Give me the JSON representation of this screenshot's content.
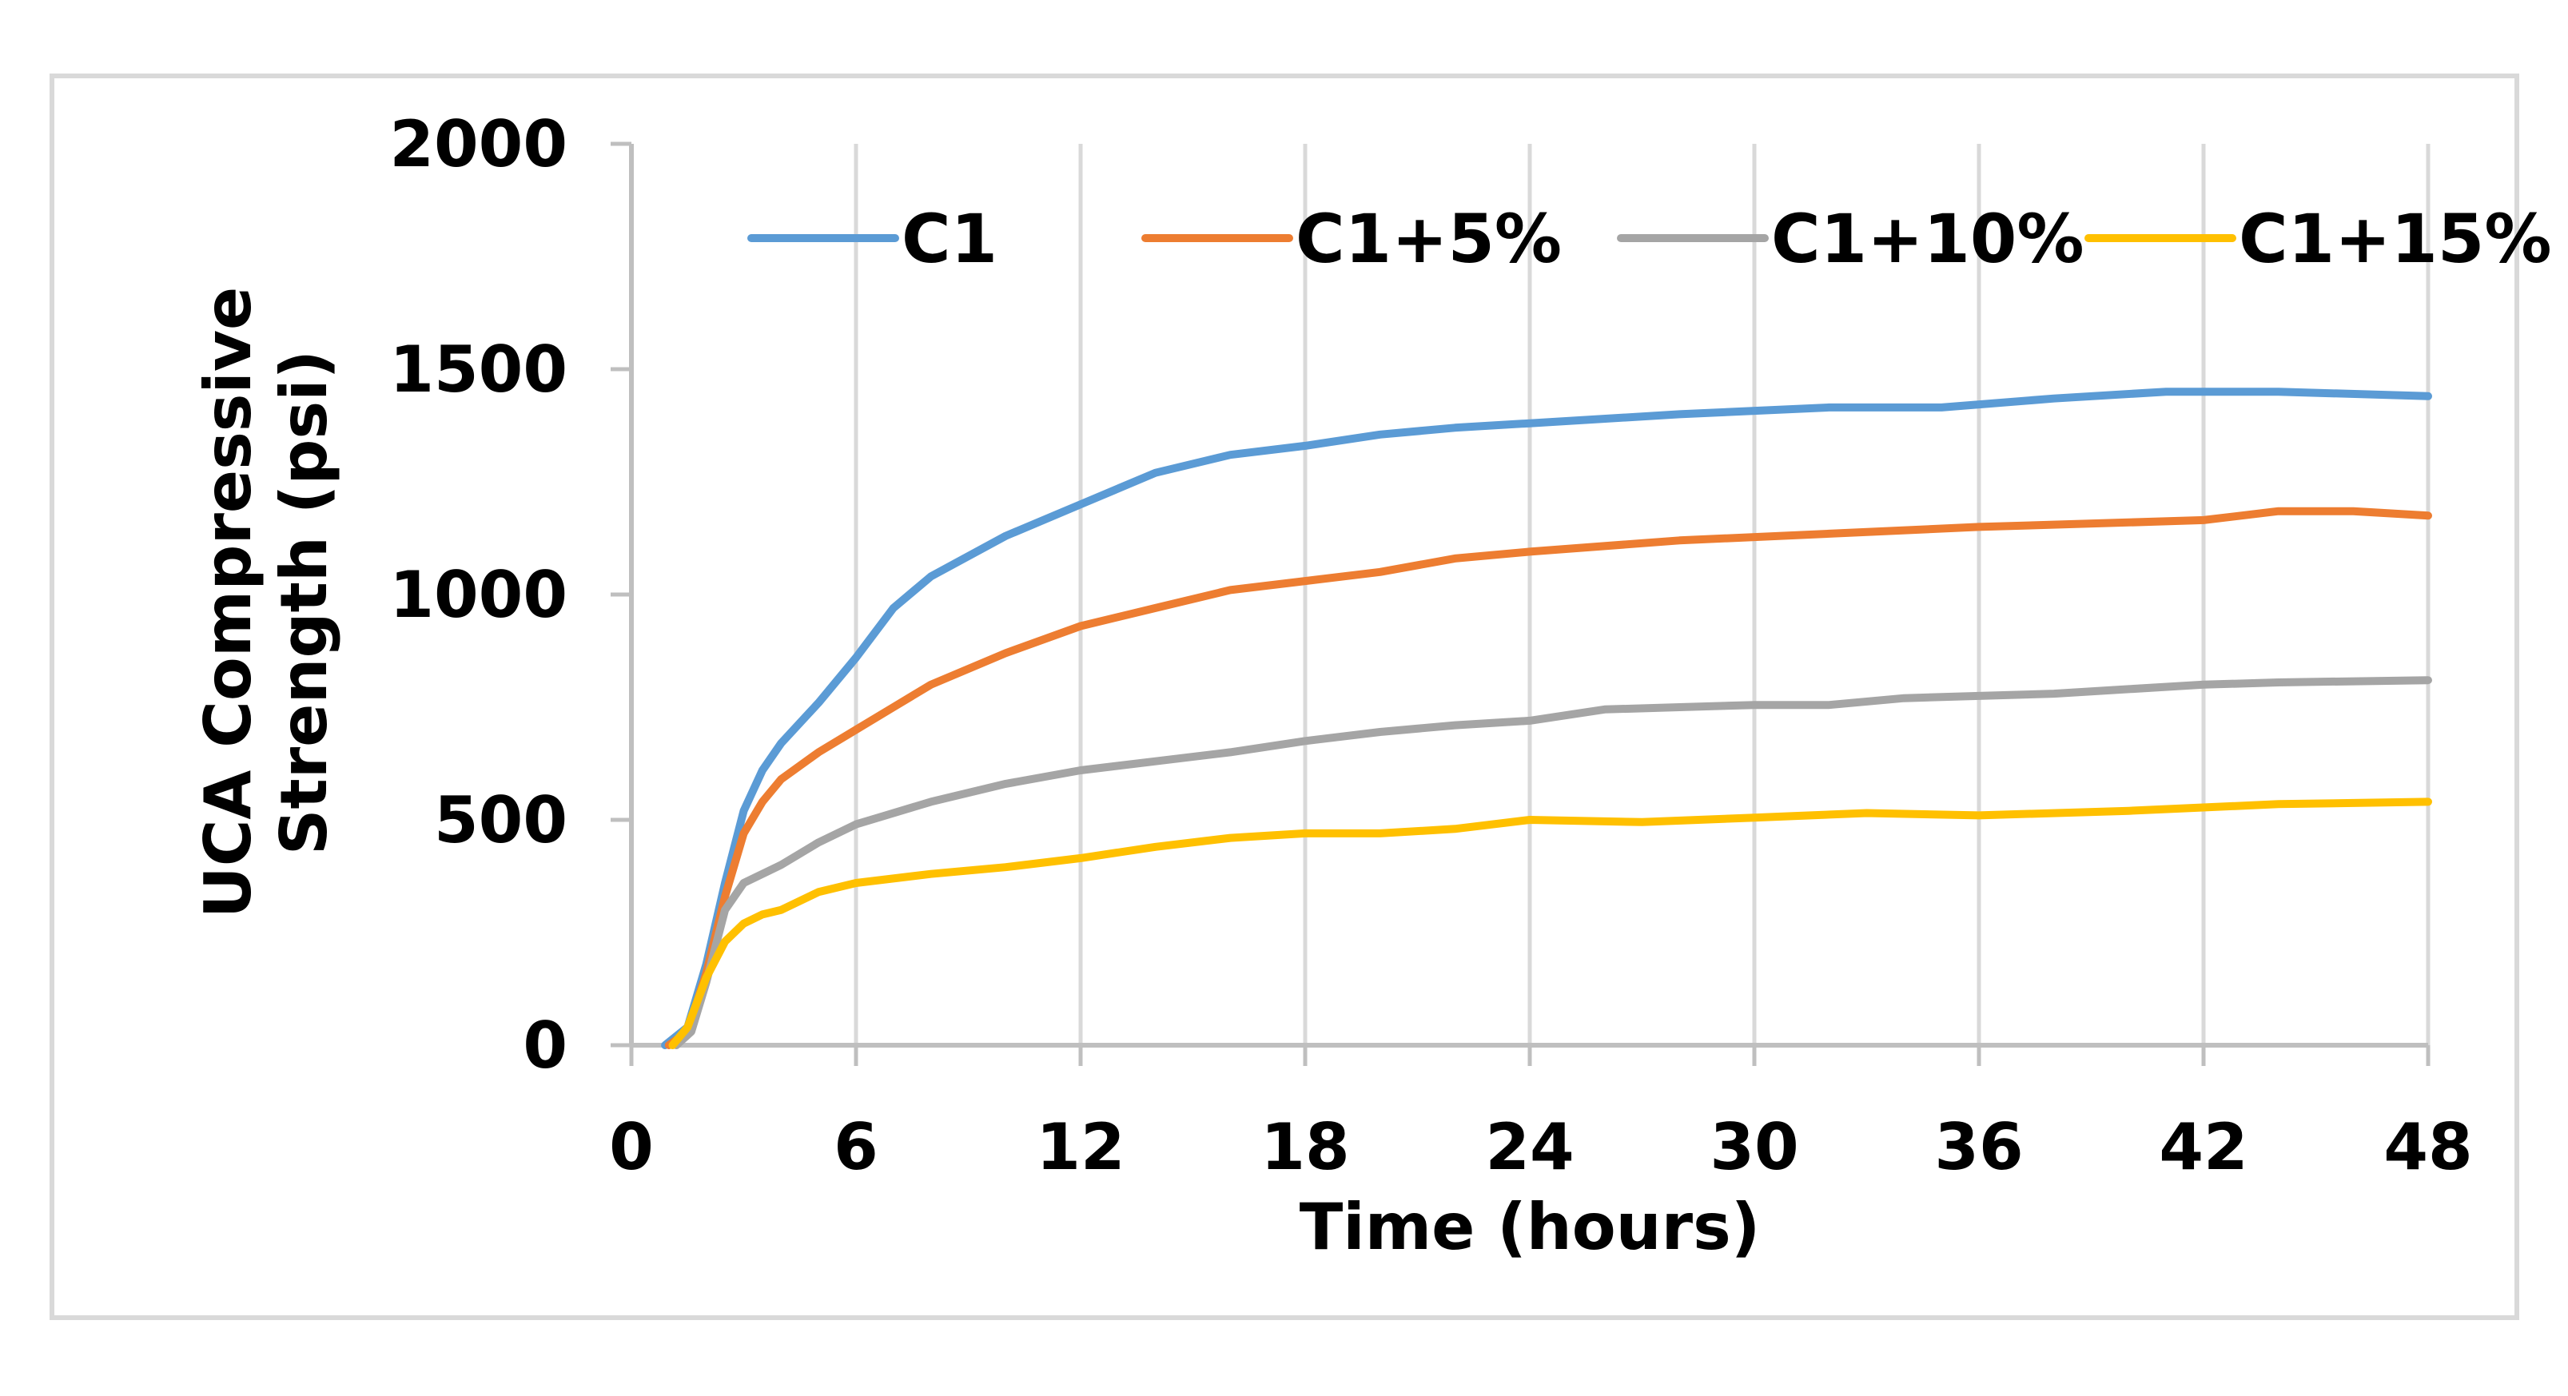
{
  "chart_data": {
    "type": "line",
    "title": "",
    "xlabel": "Time (hours)",
    "ylabel_line1": "UCA Compressive",
    "ylabel_line2": "Strength (psi)",
    "xlim": [
      0,
      48
    ],
    "ylim": [
      0,
      2000
    ],
    "xticks": [
      0,
      6,
      12,
      18,
      24,
      30,
      36,
      42,
      48
    ],
    "yticks": [
      0,
      500,
      1000,
      1500,
      2000
    ],
    "grid": "vertical",
    "legend_position": "top",
    "series": [
      {
        "name": "C1",
        "color": "#5b9bd5",
        "points": [
          [
            0.9,
            0
          ],
          [
            1.5,
            40
          ],
          [
            2,
            180
          ],
          [
            2.5,
            360
          ],
          [
            3,
            520
          ],
          [
            3.5,
            610
          ],
          [
            4,
            670
          ],
          [
            5,
            760
          ],
          [
            6,
            860
          ],
          [
            7,
            970
          ],
          [
            8,
            1040
          ],
          [
            10,
            1130
          ],
          [
            12,
            1200
          ],
          [
            14,
            1270
          ],
          [
            16,
            1310
          ],
          [
            18,
            1330
          ],
          [
            20,
            1355
          ],
          [
            22,
            1370
          ],
          [
            24,
            1380
          ],
          [
            28,
            1400
          ],
          [
            32,
            1415
          ],
          [
            35,
            1415
          ],
          [
            38,
            1435
          ],
          [
            41,
            1450
          ],
          [
            44,
            1450
          ],
          [
            48,
            1440
          ]
        ]
      },
      {
        "name": "C1+5%",
        "color": "#ed7d31",
        "points": [
          [
            1.0,
            0
          ],
          [
            1.5,
            30
          ],
          [
            2,
            160
          ],
          [
            2.5,
            330
          ],
          [
            3,
            470
          ],
          [
            3.5,
            540
          ],
          [
            4,
            590
          ],
          [
            5,
            650
          ],
          [
            6,
            700
          ],
          [
            7,
            750
          ],
          [
            8,
            800
          ],
          [
            10,
            870
          ],
          [
            12,
            930
          ],
          [
            14,
            970
          ],
          [
            16,
            1010
          ],
          [
            18,
            1030
          ],
          [
            20,
            1050
          ],
          [
            22,
            1080
          ],
          [
            24,
            1095
          ],
          [
            28,
            1120
          ],
          [
            32,
            1135
          ],
          [
            36,
            1150
          ],
          [
            40,
            1160
          ],
          [
            42,
            1165
          ],
          [
            44,
            1185
          ],
          [
            46,
            1185
          ],
          [
            48,
            1175
          ]
        ]
      },
      {
        "name": "C1+10%",
        "color": "#a5a5a5",
        "points": [
          [
            1.2,
            0
          ],
          [
            1.6,
            30
          ],
          [
            2,
            140
          ],
          [
            2.5,
            300
          ],
          [
            3,
            360
          ],
          [
            4,
            400
          ],
          [
            5,
            450
          ],
          [
            6,
            490
          ],
          [
            8,
            540
          ],
          [
            10,
            580
          ],
          [
            12,
            610
          ],
          [
            14,
            630
          ],
          [
            16,
            650
          ],
          [
            18,
            675
          ],
          [
            20,
            695
          ],
          [
            22,
            710
          ],
          [
            24,
            720
          ],
          [
            26,
            745
          ],
          [
            28,
            750
          ],
          [
            30,
            755
          ],
          [
            32,
            755
          ],
          [
            34,
            770
          ],
          [
            36,
            775
          ],
          [
            38,
            780
          ],
          [
            40,
            790
          ],
          [
            42,
            800
          ],
          [
            44,
            805
          ],
          [
            48,
            810
          ]
        ]
      },
      {
        "name": "C1+15%",
        "color": "#ffc000",
        "points": [
          [
            1.1,
            0
          ],
          [
            1.5,
            40
          ],
          [
            2,
            150
          ],
          [
            2.5,
            230
          ],
          [
            3,
            270
          ],
          [
            3.5,
            290
          ],
          [
            4,
            300
          ],
          [
            5,
            340
          ],
          [
            6,
            360
          ],
          [
            8,
            380
          ],
          [
            10,
            395
          ],
          [
            12,
            415
          ],
          [
            14,
            440
          ],
          [
            16,
            460
          ],
          [
            18,
            470
          ],
          [
            20,
            470
          ],
          [
            22,
            480
          ],
          [
            24,
            500
          ],
          [
            27,
            495
          ],
          [
            30,
            505
          ],
          [
            33,
            515
          ],
          [
            36,
            510
          ],
          [
            40,
            520
          ],
          [
            44,
            535
          ],
          [
            48,
            540
          ]
        ]
      }
    ]
  }
}
